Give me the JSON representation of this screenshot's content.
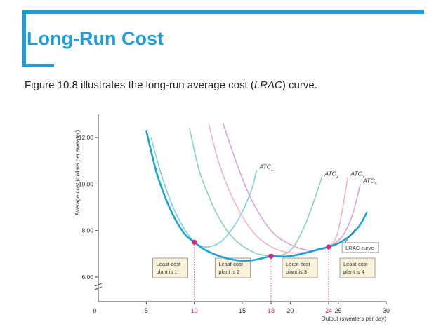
{
  "slide": {
    "title": "Long-Run Cost",
    "subtitle_before": "Figure 10.8 illustrates the long-run average cost (",
    "subtitle_em": "LRAC",
    "subtitle_after": ") curve."
  },
  "colors": {
    "accent": "#1f9bd7",
    "lrac": "#1aa3d6",
    "atc1": "#7fd1e8",
    "atc2": "#88d4b4",
    "atc3": "#f0b3c9",
    "atc4": "#d8a4d6",
    "points": "#d6267a"
  },
  "chart_data": {
    "type": "line",
    "xlabel": "Output (sweaters per day)",
    "ylabel": "Average cost (dollars per sweater)",
    "xlim": [
      0,
      30
    ],
    "ylim": [
      6.0,
      13.0
    ],
    "x_ticks": [
      0,
      5,
      10,
      15,
      18,
      20,
      24,
      25,
      30
    ],
    "x_ticks_highlighted": [
      10,
      18,
      24
    ],
    "y_ticks": [
      6.0,
      8.0,
      10.0,
      12.0
    ],
    "y_tick_labels": [
      "6.00",
      "8.00",
      "10.00",
      "12.00"
    ],
    "series": [
      {
        "name": "ATC1",
        "label_main": "ATC",
        "label_sub": "1",
        "color_key": "atc1",
        "x": [
          5.5,
          6.5,
          7.5,
          8.5,
          9.5,
          10,
          11,
          12,
          13,
          14,
          15,
          16,
          16.5
        ],
        "y": [
          12.0,
          10.5,
          9.3,
          8.4,
          7.75,
          7.5,
          7.3,
          7.35,
          7.6,
          8.1,
          8.8,
          9.8,
          10.6
        ]
      },
      {
        "name": "ATC2",
        "label_main": "ATC",
        "label_sub": "2",
        "color_key": "atc2",
        "x": [
          9.5,
          10.5,
          11.5,
          12.5,
          14,
          16,
          18,
          19.5,
          20.5,
          21.5,
          22.5,
          23.3
        ],
        "y": [
          12.4,
          10.6,
          9.5,
          8.6,
          7.7,
          7.1,
          6.9,
          7.0,
          7.4,
          8.2,
          9.3,
          10.3
        ]
      },
      {
        "name": "ATC3",
        "label_main": "ATC",
        "label_sub": "3",
        "color_key": "atc3",
        "x": [
          11.5,
          12.5,
          14,
          16,
          18,
          20,
          22,
          24,
          25,
          26
        ],
        "y": [
          12.6,
          11.0,
          9.4,
          8.0,
          7.3,
          7.05,
          7.1,
          7.3,
          8.0,
          10.3
        ]
      },
      {
        "name": "ATC4",
        "label_main": "ATC",
        "label_sub": "4",
        "color_key": "atc4",
        "x": [
          13,
          14.5,
          16,
          18,
          20,
          22,
          24,
          25.5,
          26.5,
          27.3
        ],
        "y": [
          12.6,
          10.8,
          9.3,
          8.0,
          7.4,
          7.15,
          7.3,
          7.8,
          8.7,
          10.0
        ]
      },
      {
        "name": "LRAC curve",
        "color_key": "lrac",
        "x": [
          5.0,
          6.0,
          7.0,
          8.0,
          9.0,
          10,
          11,
          12,
          13,
          14,
          15,
          16,
          17,
          18,
          19,
          20,
          21,
          22,
          23,
          24,
          25,
          26,
          27,
          27.5,
          28
        ],
        "y": [
          12.3,
          10.6,
          9.4,
          8.5,
          7.85,
          7.5,
          7.2,
          7.0,
          6.85,
          6.75,
          6.7,
          6.72,
          6.8,
          6.9,
          6.88,
          6.9,
          6.98,
          7.08,
          7.2,
          7.3,
          7.45,
          7.7,
          8.1,
          8.4,
          8.8
        ]
      }
    ],
    "points": [
      {
        "x": 10,
        "y": 7.5
      },
      {
        "x": 18,
        "y": 6.9
      },
      {
        "x": 24,
        "y": 7.3
      }
    ],
    "lrac_label": "LRAC curve",
    "annotations": [
      {
        "line1": "Least-cost",
        "line2": "plant is 1",
        "x_center": 7.5
      },
      {
        "line1": "Least-cost",
        "line2": "plant is 2",
        "x_center": 14.0
      },
      {
        "line1": "Least-cost",
        "line2": "plant is 3",
        "x_center": 21.0
      },
      {
        "line1": "Least-cost",
        "line2": "plant is 4",
        "x_center": 27.0
      }
    ]
  }
}
